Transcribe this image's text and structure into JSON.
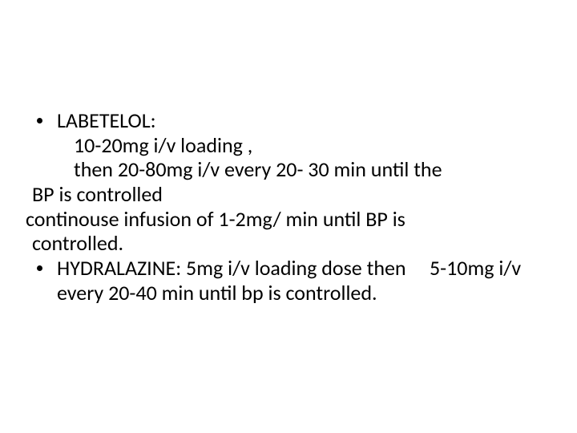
{
  "slide": {
    "background_color": "#ffffff",
    "text_color": "#000000",
    "font_family": "Calibri",
    "font_size_pt": 26,
    "bullets": [
      {
        "marker": "dot",
        "lines": [
          "LABETELOL:",
          "10-20mg i/v loading ,",
          "then 20-80mg i/v every 20- 30 min until the"
        ],
        "continuation_lines": [
          "BP is controlled",
          "continouse infusion of 1-2mg/ min until BP is",
          "controlled."
        ]
      },
      {
        "marker": "dot",
        "lines": [
          "HYDRALAZINE: 5mg i/v loading dose then     5-10mg i/v every 20-40 min until bp is controlled."
        ]
      }
    ]
  },
  "text": {
    "b1_l1": "LABETELOL:",
    "b1_l2": "10-20mg i/v loading ,",
    "b1_l3": "then 20-80mg i/v every 20- 30 min until the",
    "c1": "BP is controlled",
    "c2": "continouse infusion of 1-2mg/ min until BP is",
    "c3": "controlled.",
    "b2_part1": "HYDRALAZINE: 5mg i/v loading dose then",
    "b2_gap": "     ",
    "b2_part2": "5-10mg i/v every 20-40 min until bp is controlled."
  }
}
